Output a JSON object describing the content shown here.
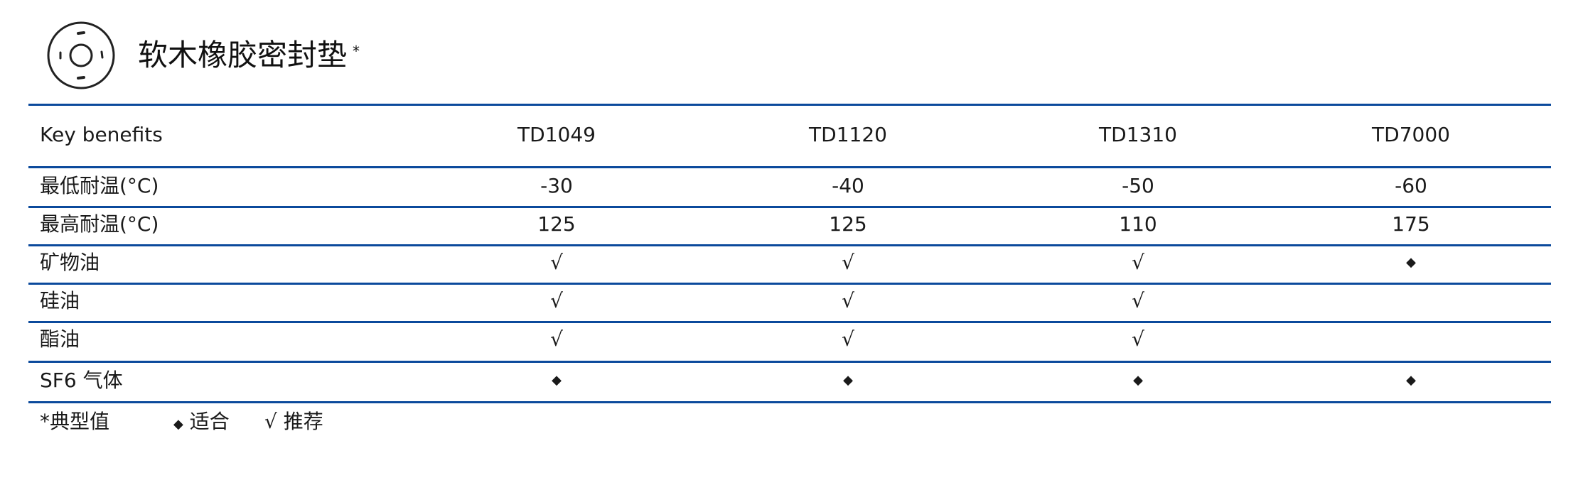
{
  "header": {
    "title": "软木橡胶密封垫",
    "title_mark": "*",
    "icon": "gasket-icon"
  },
  "table": {
    "columns": [
      "Key benefits",
      "TD1049",
      "TD1120",
      "TD1310",
      "TD7000"
    ],
    "rows": [
      [
        "最低耐温(°C)",
        "-30",
        "-40",
        "-50",
        "-60"
      ],
      [
        "最高耐温(°C)",
        "125",
        "125",
        "110",
        "175"
      ],
      [
        "矿物油",
        "√",
        "√",
        "√",
        "◆"
      ],
      [
        "硅油",
        "√",
        "√",
        "√",
        ""
      ],
      [
        "酯油",
        "√",
        "√",
        "√",
        ""
      ],
      [
        "SF6 气体",
        "◆",
        "◆",
        "◆",
        "◆"
      ]
    ]
  },
  "legend": {
    "note": "*典型值",
    "suitable_symbol": "◆",
    "suitable": "适合",
    "recommended_symbol": "√",
    "recommended": "推荐"
  },
  "colors": {
    "rule": "#0b4a9c",
    "text": "#1a1a1a"
  }
}
